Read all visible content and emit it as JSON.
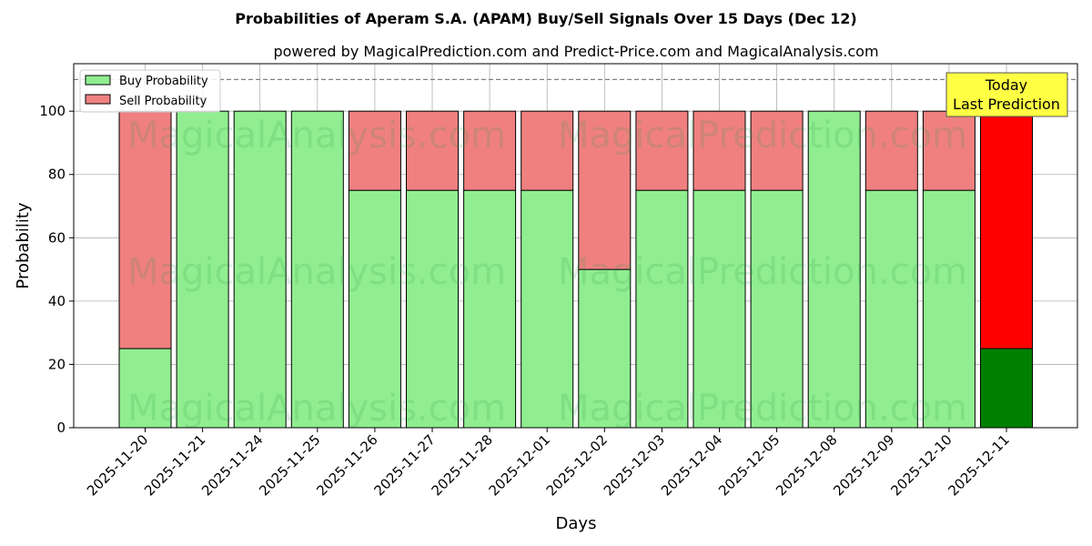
{
  "chart_data": {
    "type": "bar",
    "stacked": true,
    "title": "Probabilities of Aperam S.A. (APAM) Buy/Sell Signals Over 15 Days (Dec 12)",
    "subtitle": "powered by MagicalPrediction.com and Predict-Price.com and MagicalAnalysis.com",
    "xlabel": "Days",
    "ylabel": "Probability",
    "ylim": [
      0,
      115
    ],
    "yticks": [
      0,
      20,
      40,
      60,
      80,
      100
    ],
    "grid": true,
    "legend_position": "top-left",
    "reference_line": 110,
    "categories": [
      "2025-11-20",
      "2025-11-21",
      "2025-11-24",
      "2025-11-25",
      "2025-11-26",
      "2025-11-27",
      "2025-11-28",
      "2025-12-01",
      "2025-12-02",
      "2025-12-03",
      "2025-12-04",
      "2025-12-05",
      "2025-12-08",
      "2025-12-09",
      "2025-12-10",
      "2025-12-11"
    ],
    "series": [
      {
        "name": "Buy Probability",
        "values": [
          25,
          100,
          100,
          100,
          75,
          75,
          75,
          75,
          50,
          75,
          75,
          75,
          100,
          75,
          75,
          25
        ]
      },
      {
        "name": "Sell Probability",
        "values": [
          75,
          0,
          0,
          0,
          25,
          25,
          25,
          25,
          50,
          25,
          25,
          25,
          0,
          25,
          25,
          75
        ]
      }
    ],
    "colors": {
      "buy": "#90ee90",
      "sell": "#f08080",
      "today_buy": "#008000",
      "today_sell": "#ff0000",
      "annotation_bg": "#ffff44"
    },
    "annotation": {
      "line1": "Today",
      "line2": "Last Prediction"
    },
    "watermarks": [
      "MagicalAnalysis.com",
      "MagicalPrediction.com"
    ]
  }
}
